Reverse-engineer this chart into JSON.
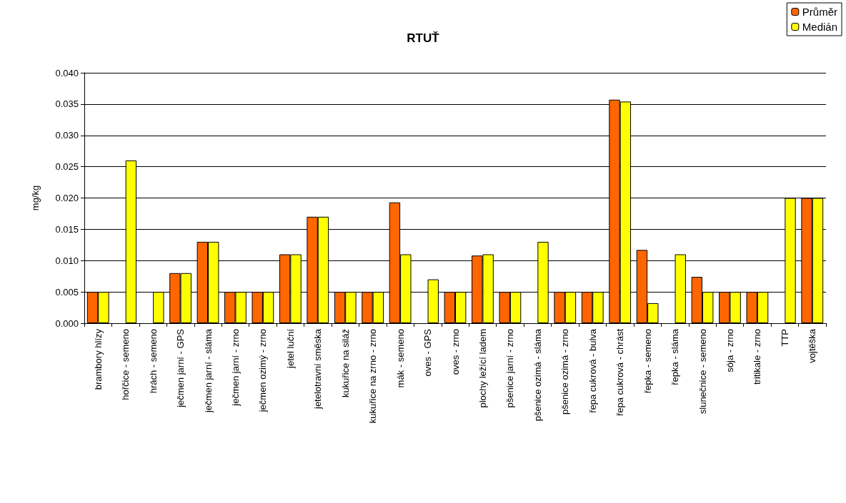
{
  "chart_data": {
    "type": "bar",
    "title": "RTUŤ",
    "ylabel": "mg/kg",
    "categories": [
      "brambory hlízy",
      "hořčice - semeno",
      "hrách - semeno",
      "ječmen jarní - GPS",
      "ječmen jarní - sláma",
      "ječmen jarní - zrno",
      "ječmen ozimý - zrno",
      "jetel luční",
      "jetelotravní směska",
      "kukuřice na siláž",
      "kukuřice na zrno - zrno",
      "mák - semeno",
      "oves - GPS",
      "oves - zrno",
      "plochy ležící ladem",
      "pšenice jarní - zrno",
      "pšenice ozimá - sláma",
      "pšenice ozimá - zrno",
      "řepa cukrová - bulva",
      "řepa cukrová - chrást",
      "řepka - semeno",
      "řepka - sláma",
      "slunečnice - semeno",
      "sója - zrno",
      "tritikale - zrno",
      "TTP",
      "vojtěška"
    ],
    "series": [
      {
        "name": "Průměr",
        "color": "#ff6600",
        "values": [
          0.005,
          null,
          null,
          0.008,
          0.013,
          0.005,
          0.005,
          0.011,
          0.017,
          0.005,
          0.005,
          0.0193,
          null,
          0.005,
          0.0108,
          0.005,
          null,
          0.005,
          0.005,
          0.0357,
          0.0117,
          null,
          0.0074,
          0.005,
          0.005,
          null,
          0.02
        ]
      },
      {
        "name": "Medián",
        "color": "#ffff00",
        "values": [
          0.005,
          0.026,
          0.005,
          0.008,
          0.013,
          0.005,
          0.005,
          0.011,
          0.017,
          0.005,
          0.005,
          0.011,
          0.007,
          0.005,
          0.011,
          0.005,
          0.013,
          0.005,
          0.005,
          0.0354,
          0.0032,
          0.011,
          0.005,
          0.005,
          0.005,
          0.02,
          0.02
        ]
      }
    ],
    "ylim": [
      0,
      0.04
    ],
    "yticks": [
      {
        "value": 0,
        "label": "0.000"
      },
      0.005,
      {
        "value": 0.01,
        "label": "0.010"
      },
      0.015,
      {
        "value": 0.02,
        "label": "0.020"
      },
      0.025,
      {
        "value": 0.03,
        "label": "0.030"
      },
      0.035,
      {
        "value": 0.04,
        "label": "0.040"
      }
    ],
    "grid": "y",
    "legend": "top right"
  }
}
